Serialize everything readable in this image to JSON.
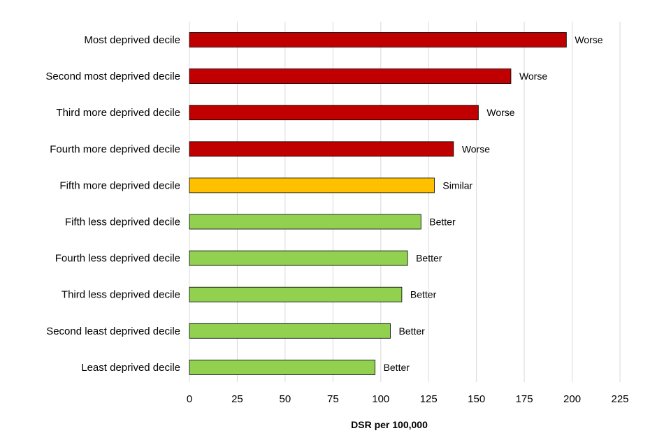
{
  "chart_data": {
    "type": "bar",
    "orientation": "horizontal",
    "title": "",
    "xlabel": "DSR per 100,000",
    "ylabel": "",
    "xlim": [
      0,
      225
    ],
    "x_ticks": [
      0,
      25,
      50,
      75,
      100,
      125,
      150,
      175,
      200,
      225
    ],
    "grid": "vertical",
    "legend": "none",
    "categories": [
      "Most deprived decile",
      "Second most deprived decile",
      "Third more deprived decile",
      "Fourth more deprived decile",
      "Fifth more deprived decile",
      "Fifth less deprived decile",
      "Fourth less deprived decile",
      "Third less deprived decile",
      "Second least deprived decile",
      "Least deprived decile"
    ],
    "values": [
      197,
      168,
      151,
      138,
      128,
      121,
      114,
      111,
      105,
      97
    ],
    "labels": [
      "Worse",
      "Worse",
      "Worse",
      "Worse",
      "Similar",
      "Better",
      "Better",
      "Better",
      "Better",
      "Better"
    ],
    "label_colors": {
      "Worse": "#c00000",
      "Similar": "#ffc000",
      "Better": "#92d050"
    }
  }
}
